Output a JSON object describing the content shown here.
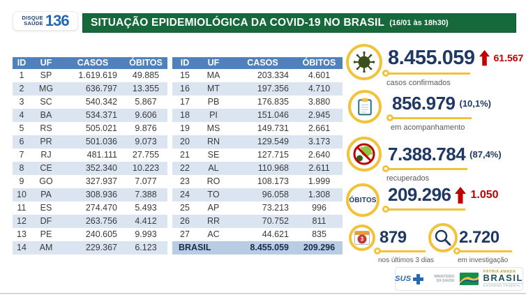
{
  "header": {
    "logo_line1": "DISQUE",
    "logo_line2": "SAÚDE",
    "logo_number": "136",
    "title": "SITUAÇÃO EPIDEMIOLÓGICA DA COVID-19 NO BRASIL",
    "timestamp": "(16/01 às 18h30)"
  },
  "table": {
    "columns": [
      "ID",
      "UF",
      "CASOS",
      "ÓBITOS"
    ],
    "left_rows": [
      {
        "id": "1",
        "uf": "SP",
        "casos": "1.619.619",
        "obitos": "49.885"
      },
      {
        "id": "2",
        "uf": "MG",
        "casos": "636.797",
        "obitos": "13.355"
      },
      {
        "id": "3",
        "uf": "SC",
        "casos": "540.342",
        "obitos": "5.867"
      },
      {
        "id": "4",
        "uf": "BA",
        "casos": "534.371",
        "obitos": "9.606"
      },
      {
        "id": "5",
        "uf": "RS",
        "casos": "505.021",
        "obitos": "9.876"
      },
      {
        "id": "6",
        "uf": "PR",
        "casos": "501.036",
        "obitos": "9.073"
      },
      {
        "id": "7",
        "uf": "RJ",
        "casos": "481.111",
        "obitos": "27.755"
      },
      {
        "id": "8",
        "uf": "CE",
        "casos": "352.340",
        "obitos": "10.223"
      },
      {
        "id": "9",
        "uf": "GO",
        "casos": "327.937",
        "obitos": "7.077"
      },
      {
        "id": "10",
        "uf": "PA",
        "casos": "308.936",
        "obitos": "7.388"
      },
      {
        "id": "11",
        "uf": "ES",
        "casos": "274.470",
        "obitos": "5.493"
      },
      {
        "id": "12",
        "uf": "DF",
        "casos": "263.756",
        "obitos": "4.412"
      },
      {
        "id": "13",
        "uf": "PE",
        "casos": "240.605",
        "obitos": "9.993"
      },
      {
        "id": "14",
        "uf": "AM",
        "casos": "229.367",
        "obitos": "6.123"
      }
    ],
    "right_rows": [
      {
        "id": "15",
        "uf": "MA",
        "casos": "203.334",
        "obitos": "4.601"
      },
      {
        "id": "16",
        "uf": "MT",
        "casos": "197.356",
        "obitos": "4.710"
      },
      {
        "id": "17",
        "uf": "PB",
        "casos": "176.835",
        "obitos": "3.880"
      },
      {
        "id": "18",
        "uf": "PI",
        "casos": "151.046",
        "obitos": "2.945"
      },
      {
        "id": "19",
        "uf": "MS",
        "casos": "149.731",
        "obitos": "2.661"
      },
      {
        "id": "20",
        "uf": "RN",
        "casos": "129.549",
        "obitos": "3.173"
      },
      {
        "id": "21",
        "uf": "SE",
        "casos": "127.715",
        "obitos": "2.640"
      },
      {
        "id": "22",
        "uf": "AL",
        "casos": "110.968",
        "obitos": "2.611"
      },
      {
        "id": "23",
        "uf": "RO",
        "casos": "108.173",
        "obitos": "1.999"
      },
      {
        "id": "24",
        "uf": "TO",
        "casos": "96.058",
        "obitos": "1.308"
      },
      {
        "id": "25",
        "uf": "AP",
        "casos": "73.213",
        "obitos": "996"
      },
      {
        "id": "26",
        "uf": "RR",
        "casos": "70.752",
        "obitos": "811"
      },
      {
        "id": "27",
        "uf": "AC",
        "casos": "44.621",
        "obitos": "835"
      }
    ],
    "total": {
      "label": "BRASIL",
      "casos": "8.455.059",
      "obitos": "209.296"
    }
  },
  "stats": {
    "confirmed": {
      "value": "8.455.059",
      "delta": "61.567",
      "label": "casos confirmados"
    },
    "monitoring": {
      "value": "856.979",
      "percent": "(10,1%)",
      "label": "em acompanhamento"
    },
    "recovered": {
      "value": "7.388.784",
      "percent": "(87,4%)",
      "label": "recuperados"
    },
    "deaths": {
      "badge": "ÓBITOS",
      "value": "209.296",
      "delta": "1.050"
    },
    "last_3_days": {
      "value": "879",
      "label": "nos últimos 3 dias",
      "calendar_badge": "3"
    },
    "under_investigation": {
      "value": "2.720",
      "label": "em investigação"
    }
  },
  "footer": {
    "sus_label": "SUS",
    "ministry": "MINISTÉRIO DA SAÚDE",
    "patria_amada": "PÁTRIA AMADA",
    "brasil": "BRASIL",
    "governo": "GOVERNO FEDERAL"
  },
  "colors": {
    "banner_green": "#15693B",
    "table_header_blue": "#4F81BD",
    "row_alt_blue": "#DBE5F1",
    "total_row_blue": "#B8CCE4",
    "number_navy": "#1F3864",
    "alert_red": "#C00000",
    "accent_gold": "#F2C338"
  }
}
